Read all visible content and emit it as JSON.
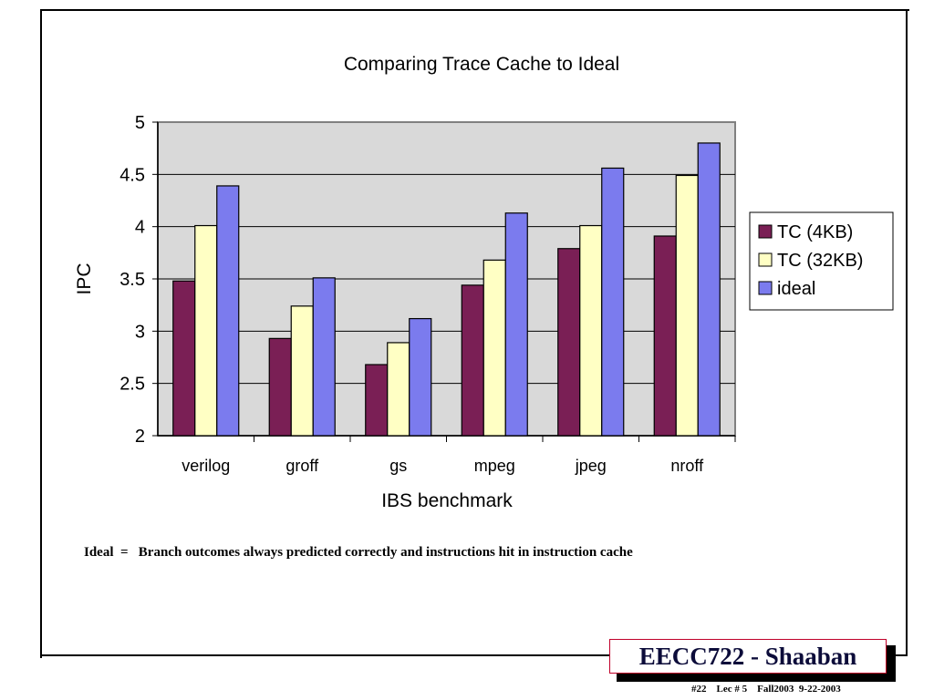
{
  "chart_data": {
    "type": "bar",
    "title": "Comparing Trace Cache to Ideal",
    "xlabel": "IBS benchmark",
    "ylabel": "IPC",
    "ylim": [
      2,
      5
    ],
    "yticks": [
      "2",
      "2.5",
      "3",
      "3.5",
      "4",
      "4.5",
      "5"
    ],
    "categories": [
      "verilog",
      "groff",
      "gs",
      "mpeg",
      "jpeg",
      "nroff"
    ],
    "series": [
      {
        "name": "TC (4KB)",
        "color": "#7a1f55",
        "values": [
          3.48,
          2.93,
          2.68,
          3.44,
          3.79,
          3.91
        ]
      },
      {
        "name": "TC (32KB)",
        "color": "#ffffc4",
        "values": [
          4.01,
          3.24,
          2.89,
          3.68,
          4.01,
          4.49
        ]
      },
      {
        "name": "ideal",
        "color": "#7b7bee",
        "values": [
          4.39,
          3.51,
          3.12,
          4.13,
          4.56,
          4.8
        ]
      }
    ],
    "grid": true,
    "legend": "right"
  },
  "note": "Ideal  =   Branch outcomes always predicted correctly and instructions hit in instruction cache",
  "badge": "EECC722 - Shaaban",
  "footer": "#22    Lec # 5    Fall2003  9-22-2003"
}
